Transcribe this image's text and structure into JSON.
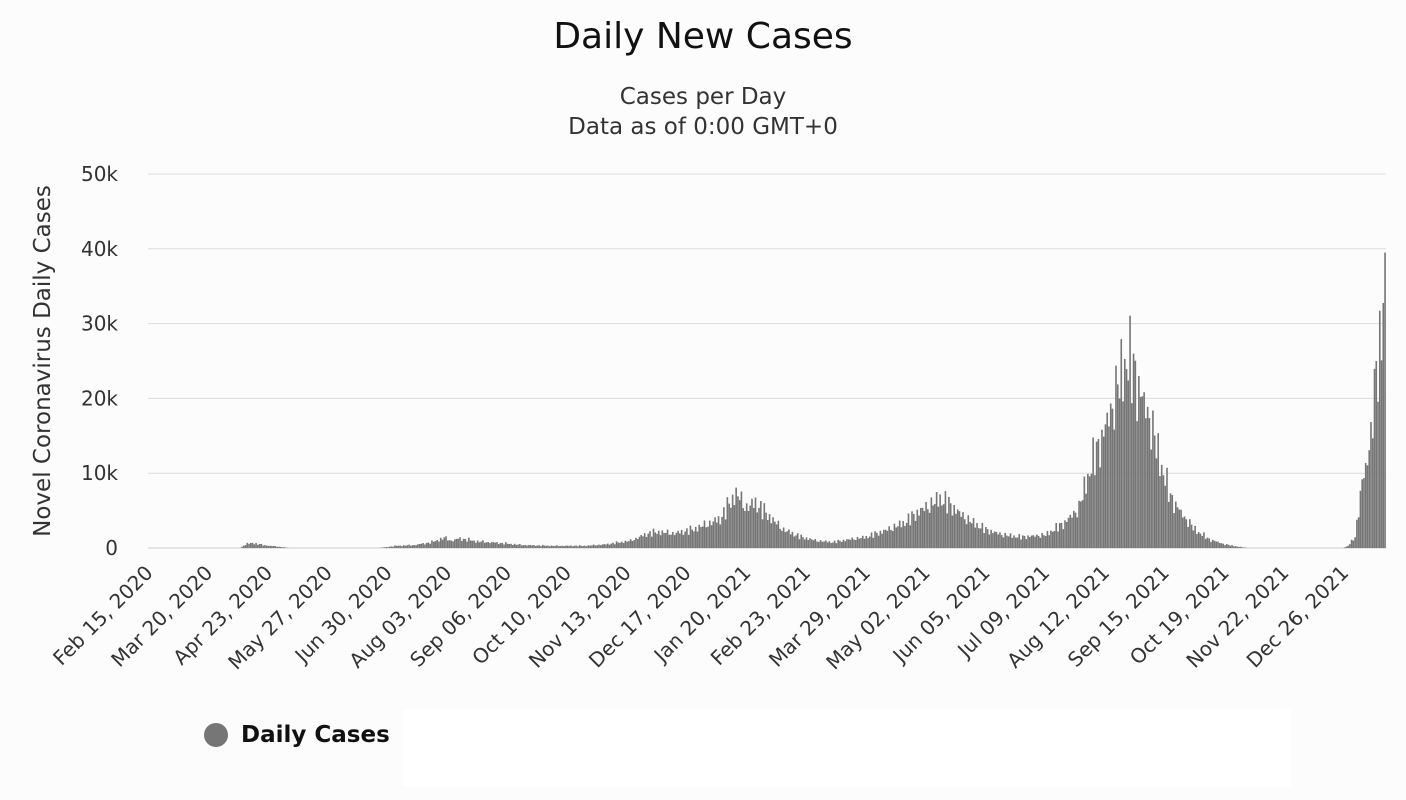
{
  "chart_data": {
    "type": "bar",
    "title": "Daily New Cases",
    "subtitle_lines": [
      "Cases per Day",
      "Data as of 0:00 GMT+0"
    ],
    "ylabel": "Novel Coronavirus Daily Cases",
    "xlabel": "",
    "ylim": [
      0,
      50000
    ],
    "y_ticks": [
      0,
      10000,
      20000,
      30000,
      40000,
      50000
    ],
    "y_tick_labels": [
      "0",
      "10k",
      "20k",
      "30k",
      "40k",
      "50k"
    ],
    "x_tick_labels": [
      "Feb 15, 2020",
      "Mar 20, 2020",
      "Apr 23, 2020",
      "May 27, 2020",
      "Jun 30, 2020",
      "Aug 03, 2020",
      "Sep 06, 2020",
      "Oct 10, 2020",
      "Nov 13, 2020",
      "Dec 17, 2020",
      "Jan 20, 2021",
      "Feb 23, 2021",
      "Mar 29, 2021",
      "May 02, 2021",
      "Jun 05, 2021",
      "Jul 09, 2021",
      "Aug 12, 2021",
      "Sep 15, 2021",
      "Oct 19, 2021",
      "Nov 22, 2021",
      "Dec 26, 2021"
    ],
    "x_start": "Feb 15, 2020",
    "grid": true,
    "legend_position": "bottom-left",
    "series": [
      {
        "name": "Daily Cases",
        "color": "#767676",
        "keypoints": [
          [
            "2020-02-15",
            0
          ],
          [
            "2020-04-07",
            0
          ],
          [
            "2020-04-10",
            500
          ],
          [
            "2020-04-14",
            700
          ],
          [
            "2020-04-20",
            400
          ],
          [
            "2020-04-28",
            200
          ],
          [
            "2020-05-05",
            0
          ],
          [
            "2020-06-25",
            0
          ],
          [
            "2020-07-05",
            300
          ],
          [
            "2020-07-15",
            400
          ],
          [
            "2020-07-25",
            800
          ],
          [
            "2020-08-01",
            1400
          ],
          [
            "2020-08-05",
            1000
          ],
          [
            "2020-08-10",
            1300
          ],
          [
            "2020-08-20",
            900
          ],
          [
            "2020-09-01",
            700
          ],
          [
            "2020-09-15",
            400
          ],
          [
            "2020-10-01",
            300
          ],
          [
            "2020-10-20",
            300
          ],
          [
            "2020-11-01",
            500
          ],
          [
            "2020-11-15",
            1000
          ],
          [
            "2020-11-25",
            2000
          ],
          [
            "2020-12-01",
            2200
          ],
          [
            "2020-12-10",
            2000
          ],
          [
            "2020-12-20",
            2500
          ],
          [
            "2020-12-31",
            3500
          ],
          [
            "2021-01-05",
            4000
          ],
          [
            "2021-01-10",
            6000
          ],
          [
            "2021-01-14",
            7500
          ],
          [
            "2021-01-20",
            5500
          ],
          [
            "2021-01-25",
            6200
          ],
          [
            "2021-02-01",
            4500
          ],
          [
            "2021-02-10",
            2500
          ],
          [
            "2021-02-20",
            1500
          ],
          [
            "2021-03-01",
            1000
          ],
          [
            "2021-03-10",
            800
          ],
          [
            "2021-03-20",
            1200
          ],
          [
            "2021-03-29",
            1500
          ],
          [
            "2021-04-10",
            2500
          ],
          [
            "2021-04-20",
            3500
          ],
          [
            "2021-04-28",
            5000
          ],
          [
            "2021-05-05",
            6000
          ],
          [
            "2021-05-10",
            6800
          ],
          [
            "2021-05-15",
            6000
          ],
          [
            "2021-05-25",
            4000
          ],
          [
            "2021-06-05",
            2500
          ],
          [
            "2021-06-15",
            1800
          ],
          [
            "2021-06-25",
            1500
          ],
          [
            "2021-07-09",
            1800
          ],
          [
            "2021-07-20",
            3500
          ],
          [
            "2021-07-28",
            5500
          ],
          [
            "2021-08-01",
            9000
          ],
          [
            "2021-08-05",
            12000
          ],
          [
            "2021-08-10",
            15000
          ],
          [
            "2021-08-16",
            19500
          ],
          [
            "2021-08-20",
            23000
          ],
          [
            "2021-08-24",
            25800
          ],
          [
            "2021-08-28",
            24500
          ],
          [
            "2021-09-01",
            21000
          ],
          [
            "2021-09-06",
            18000
          ],
          [
            "2021-09-12",
            12000
          ],
          [
            "2021-09-18",
            7000
          ],
          [
            "2021-09-25",
            4500
          ],
          [
            "2021-10-02",
            2500
          ],
          [
            "2021-10-10",
            1200
          ],
          [
            "2021-10-19",
            500
          ],
          [
            "2021-10-26",
            200
          ],
          [
            "2021-11-01",
            0
          ],
          [
            "2021-12-25",
            0
          ],
          [
            "2021-12-28",
            300
          ],
          [
            "2022-01-01",
            1500
          ],
          [
            "2022-01-04",
            7500
          ],
          [
            "2022-01-08",
            12000
          ],
          [
            "2022-01-12",
            21000
          ],
          [
            "2022-01-15",
            27000
          ],
          [
            "2022-01-18",
            39500
          ]
        ]
      }
    ]
  },
  "legend": {
    "items": [
      {
        "label": "Daily Cases",
        "color": "#767676"
      }
    ]
  }
}
